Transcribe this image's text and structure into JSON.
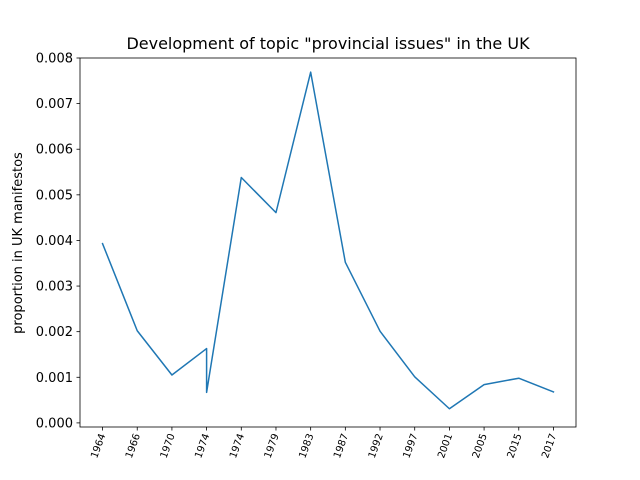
{
  "chart_data": {
    "type": "line",
    "title": "Development of topic \"provincial issues\" in the UK",
    "xlabel": "",
    "ylabel": "proportion in UK manifestos",
    "categories": [
      "1964",
      "1966",
      "1970",
      "1974",
      "1974",
      "1974",
      "1979",
      "1983",
      "1987",
      "1992",
      "1997",
      "2001",
      "2005",
      "2015",
      "2017"
    ],
    "x_ticks": [
      {
        "label": "1964",
        "pos": 0
      },
      {
        "label": "1966",
        "pos": 1
      },
      {
        "label": "1970",
        "pos": 2
      },
      {
        "label": "1974",
        "pos": 3
      },
      {
        "label": "1974",
        "pos": 4
      },
      {
        "label": "1979",
        "pos": 5
      },
      {
        "label": "1983",
        "pos": 6
      },
      {
        "label": "1987",
        "pos": 7
      },
      {
        "label": "1992",
        "pos": 8
      },
      {
        "label": "1997",
        "pos": 9
      },
      {
        "label": "2001",
        "pos": 10
      },
      {
        "label": "2005",
        "pos": 11
      },
      {
        "label": "2015",
        "pos": 12
      },
      {
        "label": "2017",
        "pos": 13
      }
    ],
    "series": [
      {
        "name": "",
        "color": "#1f77b4",
        "x": [
          0,
          1,
          2,
          3,
          3,
          4,
          5,
          6,
          7,
          8,
          9,
          10,
          11,
          12,
          13
        ],
        "values": [
          0.00393,
          0.00202,
          0.00105,
          0.00163,
          0.00067,
          0.00538,
          0.00461,
          0.00769,
          0.00352,
          0.00201,
          0.00101,
          0.00031,
          0.00084,
          0.00098,
          0.00068
        ]
      }
    ],
    "ylim": [
      -9e-05,
      0.008
    ],
    "y_ticks": [
      0.0,
      0.001,
      0.002,
      0.003,
      0.004,
      0.005,
      0.006,
      0.007,
      0.008
    ],
    "y_tick_labels": [
      "0.000",
      "0.001",
      "0.002",
      "0.003",
      "0.004",
      "0.005",
      "0.006",
      "0.007",
      "0.008"
    ],
    "grid": false,
    "x_tick_rotation": 70
  }
}
